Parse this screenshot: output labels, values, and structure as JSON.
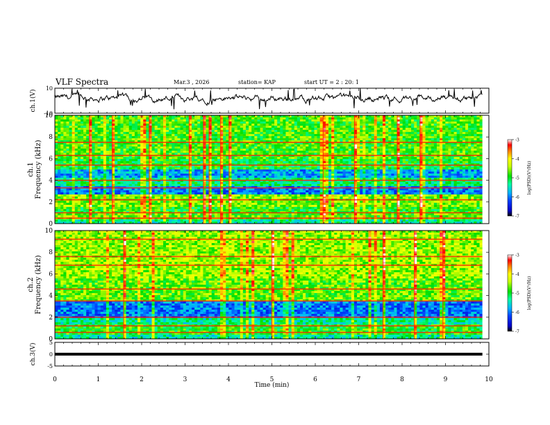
{
  "header": {
    "title": "VLF Spectra",
    "date": "Mar.3 , 2026",
    "station": "station= KAP",
    "start_ut": "start UT = 2 : 20: 1"
  },
  "chart_data": [
    {
      "type": "line",
      "name": "ch1-waveform",
      "ylabel": "ch.1(V)",
      "ylim": [
        -10,
        10
      ],
      "yticks": [
        10,
        -10
      ],
      "xlim": [
        0,
        10
      ],
      "x_end_of_data": 9.85,
      "approx_mean": 2,
      "approx_range": [
        -3,
        8
      ],
      "note": "noisy waveform; values oscillate roughly between -3 and 8 V"
    },
    {
      "type": "heatmap",
      "name": "ch1-spectrogram",
      "ylabel": "ch.1 Frequency (kHz)",
      "ylim": [
        0,
        10
      ],
      "yticks": [
        0,
        2,
        4,
        6,
        8,
        10
      ],
      "xlim": [
        0,
        10
      ],
      "x_end_of_data": 9.85,
      "colorbar": {
        "label": "log(PSD)(V²/Hz)",
        "ticks": [
          -3,
          -4,
          -5,
          -6,
          -7
        ],
        "range": [
          -7,
          -3
        ]
      },
      "bands": [
        {
          "from": 0.0,
          "to": 0.3,
          "level": -5.3
        },
        {
          "from": 0.3,
          "to": 0.9,
          "level": -4.7
        },
        {
          "from": 0.9,
          "to": 1.6,
          "level": -4.9
        },
        {
          "from": 1.6,
          "to": 2.6,
          "level": -4.6
        },
        {
          "from": 2.6,
          "to": 3.4,
          "level": -6.0
        },
        {
          "from": 3.4,
          "to": 4.2,
          "level": -5.2
        },
        {
          "from": 4.2,
          "to": 5.0,
          "level": -5.8
        },
        {
          "from": 5.0,
          "to": 6.0,
          "level": -5.0
        },
        {
          "from": 6.0,
          "to": 10.0,
          "level": -4.8
        }
      ],
      "lines_khz": [
        0.5,
        1.0,
        2.2,
        3.3,
        4.0,
        5.4,
        6.3,
        7.5
      ]
    },
    {
      "type": "heatmap",
      "name": "ch2-spectrogram",
      "ylabel": "ch.2 Frequency (kHz)",
      "ylim": [
        0,
        10
      ],
      "yticks": [
        0,
        2,
        4,
        6,
        8,
        10
      ],
      "xlim": [
        0,
        10
      ],
      "x_end_of_data": 9.85,
      "colorbar": {
        "label": "log(PSD)(V²/Hz)",
        "ticks": [
          -3,
          -4,
          -5,
          -6,
          -7
        ],
        "range": [
          -7,
          -3
        ]
      },
      "bands": [
        {
          "from": 0.0,
          "to": 0.4,
          "level": -5.4
        },
        {
          "from": 0.4,
          "to": 1.3,
          "level": -4.9
        },
        {
          "from": 1.3,
          "to": 2.0,
          "level": -5.3
        },
        {
          "from": 2.0,
          "to": 3.4,
          "level": -6.0
        },
        {
          "from": 3.4,
          "to": 5.5,
          "level": -4.7
        },
        {
          "from": 5.5,
          "to": 10.0,
          "level": -4.5
        }
      ],
      "lines_khz": [
        0.6,
        1.2,
        2.0,
        3.5,
        4.6,
        6.8,
        7.6,
        9.2
      ]
    },
    {
      "type": "line",
      "name": "ch3-waveform",
      "ylabel": "ch.3(V)",
      "ylim": [
        -5,
        5
      ],
      "yticks": [
        5,
        0,
        -5
      ],
      "xlim": [
        0,
        10
      ],
      "x_end_of_data": 9.85,
      "approx_value": 0,
      "approx_thickness": 1.2,
      "note": "flat thick trace near 0 V"
    }
  ],
  "xaxis": {
    "label": "Time (min)",
    "ticks": [
      "0",
      "1",
      "2",
      "3",
      "4",
      "5",
      "6",
      "7",
      "8",
      "9",
      "10"
    ],
    "range": [
      0,
      10
    ]
  }
}
